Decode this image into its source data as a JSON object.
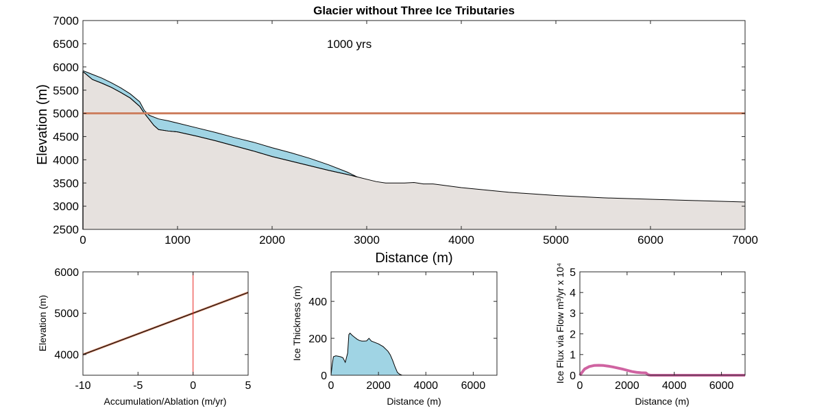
{
  "chart_data": [
    {
      "type": "area",
      "title": "Glacier without Three Ice Tributaries",
      "annotation": "1000 yrs",
      "xlabel": "Distance (m)",
      "ylabel": "Elevation (m)",
      "xlim": [
        0,
        7000
      ],
      "ylim": [
        2500,
        7000
      ],
      "xticks": [
        "0",
        "1000",
        "2000",
        "3000",
        "4000",
        "5000",
        "6000",
        "7000"
      ],
      "yticks": [
        "2500",
        "3000",
        "3500",
        "4000",
        "4500",
        "5000",
        "5500",
        "6000",
        "6500",
        "7000"
      ],
      "grid": false,
      "colors": {
        "bed_fill": "#e6e1de",
        "ice_fill": "#a0d4e4",
        "ela_line": "#cd7f60",
        "outline": "#000000"
      },
      "series": [
        {
          "role": "bed",
          "x": [
            0,
            100,
            200,
            300,
            400,
            500,
            600,
            650,
            700,
            750,
            800,
            900,
            1000,
            1200,
            1400,
            1600,
            1800,
            2000,
            2200,
            2400,
            2600,
            2800,
            2900,
            3000,
            3100,
            3200,
            3300,
            3400,
            3500,
            3600,
            3700,
            4000,
            4500,
            5000,
            5500,
            6000,
            6500,
            7000
          ],
          "y": [
            5900,
            5730,
            5650,
            5560,
            5450,
            5330,
            5150,
            5000,
            4870,
            4740,
            4650,
            4620,
            4600,
            4510,
            4410,
            4300,
            4190,
            4070,
            3970,
            3870,
            3770,
            3680,
            3630,
            3580,
            3530,
            3500,
            3500,
            3500,
            3510,
            3480,
            3480,
            3400,
            3300,
            3230,
            3180,
            3150,
            3120,
            3090
          ]
        },
        {
          "role": "ice_surface",
          "x": [
            0,
            100,
            200,
            300,
            400,
            500,
            600,
            650,
            700,
            800,
            900,
            1000,
            1200,
            1400,
            1600,
            1800,
            2000,
            2200,
            2400,
            2600,
            2800,
            2900
          ],
          "y": [
            5920,
            5840,
            5760,
            5660,
            5550,
            5420,
            5250,
            5060,
            4960,
            4880,
            4840,
            4790,
            4690,
            4590,
            4480,
            4380,
            4260,
            4150,
            4030,
            3890,
            3730,
            3630
          ]
        },
        {
          "role": "ela",
          "name": "",
          "y": 5000
        }
      ]
    },
    {
      "type": "line",
      "xlabel": "Accumulation/Ablation (m/yr)",
      "ylabel": "Elevation (m)",
      "xlim": [
        -10,
        5
      ],
      "ylim": [
        3500,
        6000
      ],
      "xticks": [
        "-10",
        "-5",
        "0",
        "5"
      ],
      "yticks": [
        "4000",
        "5000",
        "6000"
      ],
      "colors": {
        "line": "#000000",
        "overlay": "#cd7f60",
        "zero_line": "#e8241f"
      },
      "series": [
        {
          "x": [
            -10,
            5
          ],
          "y": [
            4000,
            5500
          ]
        }
      ],
      "vline_x": 0
    },
    {
      "type": "area",
      "xlabel": "Distance (m)",
      "ylabel": "Ice Thickness (m)",
      "xlim": [
        0,
        7000
      ],
      "ylim": [
        0,
        560
      ],
      "xticks": [
        "0",
        "2000",
        "4000",
        "6000"
      ],
      "yticks": [
        "0",
        "200",
        "400"
      ],
      "colors": {
        "fill": "#a0d4e4",
        "outline": "#000000"
      },
      "series": [
        {
          "x": [
            0,
            50,
            100,
            200,
            300,
            400,
            500,
            600,
            700,
            750,
            800,
            900,
            1000,
            1100,
            1200,
            1300,
            1400,
            1500,
            1600,
            1700,
            1800,
            2000,
            2200,
            2400,
            2500,
            2600,
            2700,
            2800,
            2900,
            3000,
            7000
          ],
          "y": [
            0,
            60,
            100,
            105,
            103,
            100,
            95,
            70,
            120,
            220,
            228,
            215,
            205,
            195,
            188,
            185,
            185,
            186,
            200,
            185,
            180,
            170,
            155,
            130,
            110,
            80,
            45,
            15,
            5,
            0,
            0
          ]
        }
      ]
    },
    {
      "type": "line",
      "xlabel": "Distance (m)",
      "ylabel": "Ice Flux via Flow m³/yr x 10⁴",
      "xlim": [
        0,
        7000
      ],
      "ylim": [
        0,
        5
      ],
      "xticks": [
        "0",
        "2000",
        "4000",
        "6000"
      ],
      "yticks": [
        "0",
        "1",
        "2",
        "3",
        "4",
        "5"
      ],
      "colors": {
        "line": "#cf63a1"
      },
      "series": [
        {
          "x": [
            0,
            100,
            200,
            400,
            600,
            800,
            1000,
            1200,
            1400,
            1600,
            1800,
            2000,
            2200,
            2400,
            2600,
            2800,
            2900,
            3000,
            7000
          ],
          "y": [
            0,
            0.15,
            0.3,
            0.42,
            0.47,
            0.48,
            0.47,
            0.44,
            0.4,
            0.35,
            0.3,
            0.24,
            0.18,
            0.14,
            0.12,
            0.11,
            0.02,
            0,
            0
          ]
        }
      ]
    }
  ]
}
